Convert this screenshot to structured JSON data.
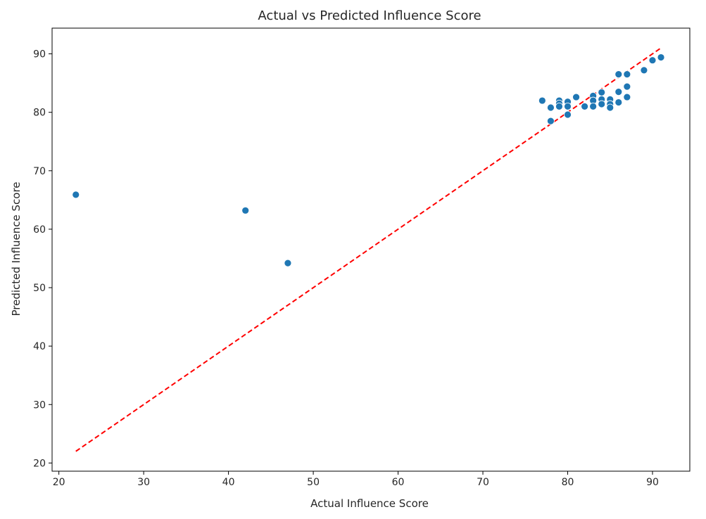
{
  "chart_data": {
    "type": "scatter",
    "title": "Actual vs Predicted Influence Score",
    "xlabel": "Actual Influence Score",
    "ylabel": "Predicted Influence Score",
    "xlim": [
      19.2,
      94.4
    ],
    "ylim": [
      18.6,
      94.4
    ],
    "xticks": [
      20,
      30,
      40,
      50,
      60,
      70,
      80,
      90
    ],
    "yticks": [
      20,
      30,
      40,
      50,
      60,
      70,
      80,
      90
    ],
    "grid": false,
    "series": [
      {
        "marker_color": "#1f77b4",
        "points": [
          {
            "x": 22,
            "y": 65.9
          },
          {
            "x": 42,
            "y": 63.2
          },
          {
            "x": 47,
            "y": 54.2
          },
          {
            "x": 77,
            "y": 82.0
          },
          {
            "x": 78,
            "y": 80.8
          },
          {
            "x": 78,
            "y": 78.5
          },
          {
            "x": 79,
            "y": 82.0
          },
          {
            "x": 79,
            "y": 81.5
          },
          {
            "x": 79,
            "y": 81.0
          },
          {
            "x": 80,
            "y": 81.8
          },
          {
            "x": 80,
            "y": 81.0
          },
          {
            "x": 80,
            "y": 79.6
          },
          {
            "x": 81,
            "y": 82.6
          },
          {
            "x": 82,
            "y": 81.0
          },
          {
            "x": 83,
            "y": 82.8
          },
          {
            "x": 83,
            "y": 82.0
          },
          {
            "x": 83,
            "y": 81.0
          },
          {
            "x": 84,
            "y": 83.4
          },
          {
            "x": 84,
            "y": 82.2
          },
          {
            "x": 84,
            "y": 81.4
          },
          {
            "x": 85,
            "y": 82.2
          },
          {
            "x": 85,
            "y": 81.4
          },
          {
            "x": 85,
            "y": 80.8
          },
          {
            "x": 86,
            "y": 86.5
          },
          {
            "x": 86,
            "y": 83.5
          },
          {
            "x": 86,
            "y": 81.7
          },
          {
            "x": 87,
            "y": 86.5
          },
          {
            "x": 87,
            "y": 84.4
          },
          {
            "x": 87,
            "y": 82.6
          },
          {
            "x": 89,
            "y": 87.2
          },
          {
            "x": 90,
            "y": 88.9
          },
          {
            "x": 91,
            "y": 89.4
          }
        ]
      }
    ],
    "reference_line": {
      "style": "dashed",
      "color": "#ff0000",
      "from": [
        22,
        22
      ],
      "to": [
        91,
        91
      ]
    }
  }
}
